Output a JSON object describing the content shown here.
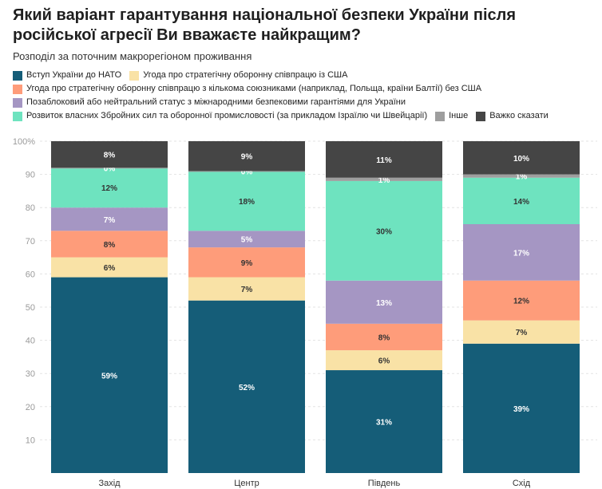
{
  "chart_data": {
    "type": "bar",
    "stacked": true,
    "title": "Який варіант гарантування національної безпеки України після російської агресії Ви вважаєте найкращим?",
    "subtitle": "Розподіл за поточним макрорегіоном проживання",
    "categories": [
      "Захід",
      "Центр",
      "Південь",
      "Схід"
    ],
    "series": [
      {
        "name": "Вступ України до НАТО",
        "color": "#155d78",
        "labelColor": "#ffffff",
        "values": [
          59,
          52,
          31,
          39
        ]
      },
      {
        "name": "Угода про стратегічну оборонну співпрацю із США",
        "color": "#f9e2a6",
        "labelColor": "#333333",
        "values": [
          6,
          7,
          6,
          7
        ]
      },
      {
        "name": "Угода про стратегічну оборонну співпрацю з кількома союзниками (наприклад, Польща, країни Балтії) без США",
        "color": "#fe9c7a",
        "labelColor": "#333333",
        "values": [
          8,
          9,
          8,
          12
        ]
      },
      {
        "name": "Позаблоковий або нейтральний статус з міжнародними безпековими гарантіями для України",
        "color": "#a596c3",
        "labelColor": "#ffffff",
        "values": [
          7,
          5,
          13,
          17
        ]
      },
      {
        "name": "Розвиток власних Збройних сил та оборонної промисловості (за прикладом Ізраїлю чи Швейцарії)",
        "color": "#6ee3bf",
        "labelColor": "#333333",
        "values": [
          12,
          18,
          30,
          14
        ]
      },
      {
        "name": "Інше",
        "color": "#9e9e9e",
        "labelColor": "#ffffff",
        "values": [
          0,
          0,
          1,
          1
        ]
      },
      {
        "name": "Важко сказати",
        "color": "#454545",
        "labelColor": "#ffffff",
        "values": [
          8,
          9,
          11,
          10
        ]
      }
    ],
    "yticks": [
      "100%",
      "90",
      "80",
      "70",
      "60",
      "50",
      "40",
      "30",
      "20",
      "10"
    ],
    "ylim": [
      0,
      100
    ],
    "label_suffix": "%",
    "grid": true,
    "legend": "top"
  }
}
